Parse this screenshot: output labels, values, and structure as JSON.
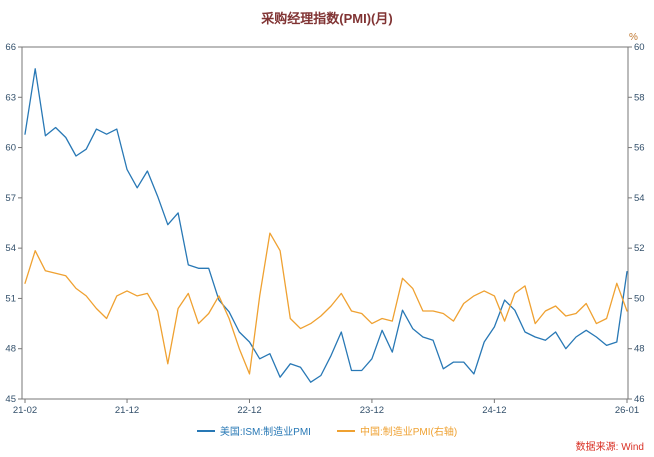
{
  "title": "采购经理指数(PMI)(月)",
  "source": "数据来源: Wind",
  "colors": {
    "us_line": "#2878b5",
    "china_line": "#efa131",
    "title_text": "#803333",
    "source_text": "#d93025",
    "axis": "#777777",
    "tick_text": "#33506b",
    "unit_text": "#c07830"
  },
  "chart_data": {
    "type": "line",
    "title": "采购经理指数(PMI)(月)",
    "grid": false,
    "legend_position": "bottom",
    "x": [
      "21-02",
      "21-03",
      "21-04",
      "21-05",
      "21-06",
      "21-07",
      "21-08",
      "21-09",
      "21-10",
      "21-11",
      "21-12",
      "22-01",
      "22-02",
      "22-03",
      "22-04",
      "22-05",
      "22-06",
      "22-07",
      "22-08",
      "22-09",
      "22-10",
      "22-11",
      "22-12",
      "23-01",
      "23-02",
      "23-03",
      "23-04",
      "23-05",
      "23-06",
      "23-07",
      "23-08",
      "23-09",
      "23-10",
      "23-11",
      "23-12",
      "24-01",
      "24-02",
      "24-03",
      "24-04",
      "24-05",
      "24-06",
      "24-07",
      "24-08",
      "24-09",
      "24-10",
      "24-11",
      "24-12",
      "25-01",
      "25-02",
      "25-03",
      "25-04",
      "25-05",
      "25-06",
      "25-07",
      "25-08",
      "25-09",
      "25-10",
      "25-11",
      "25-12",
      "26-01"
    ],
    "x_tick_labels": [
      "21-02",
      "21-12",
      "22-12",
      "23-12",
      "24-12",
      "26-01"
    ],
    "x_tick_indices": [
      0,
      10,
      22,
      34,
      46,
      59
    ],
    "left_axis": {
      "range": [
        45,
        66
      ],
      "ticks": [
        45,
        48,
        51,
        54,
        57,
        60,
        63,
        66
      ]
    },
    "right_axis": {
      "range": [
        46,
        60
      ],
      "ticks": [
        46,
        48,
        50,
        52,
        54,
        56,
        58,
        60
      ],
      "unit": "%"
    },
    "series": [
      {
        "name": "美国:ISM:制造业PMI",
        "axis": "left",
        "color": "#2878b5",
        "values": [
          60.8,
          64.7,
          60.7,
          61.2,
          60.6,
          59.5,
          59.9,
          61.1,
          60.8,
          61.1,
          58.7,
          57.6,
          58.6,
          57.1,
          55.4,
          56.1,
          53.0,
          52.8,
          52.8,
          50.9,
          50.2,
          49.0,
          48.4,
          47.4,
          47.7,
          46.3,
          47.1,
          46.9,
          46.0,
          46.4,
          47.6,
          49.0,
          46.7,
          46.7,
          47.4,
          49.1,
          47.8,
          50.3,
          49.2,
          48.7,
          48.5,
          46.8,
          47.2,
          47.2,
          46.5,
          48.4,
          49.3,
          50.9,
          50.3,
          49.0,
          48.7,
          48.5,
          49.0,
          48.0,
          48.7,
          49.1,
          48.7,
          48.2,
          48.4,
          52.6
        ]
      },
      {
        "name": "中国:制造业PMI(右轴)",
        "axis": "right",
        "color": "#efa131",
        "values": [
          50.6,
          51.9,
          51.1,
          51.0,
          50.9,
          50.4,
          50.1,
          49.6,
          49.2,
          50.1,
          50.3,
          50.1,
          50.2,
          49.5,
          47.4,
          49.6,
          50.2,
          49.0,
          49.4,
          50.1,
          49.2,
          48.0,
          47.0,
          50.1,
          52.6,
          51.9,
          49.2,
          48.8,
          49.0,
          49.3,
          49.7,
          50.2,
          49.5,
          49.4,
          49.0,
          49.2,
          49.1,
          50.8,
          50.4,
          49.5,
          49.5,
          49.4,
          49.1,
          49.8,
          50.1,
          50.3,
          50.1,
          49.1,
          50.2,
          50.5,
          49.0,
          49.5,
          49.7,
          49.3,
          49.4,
          49.8,
          49.0,
          49.2,
          50.6,
          49.5
        ]
      }
    ]
  }
}
